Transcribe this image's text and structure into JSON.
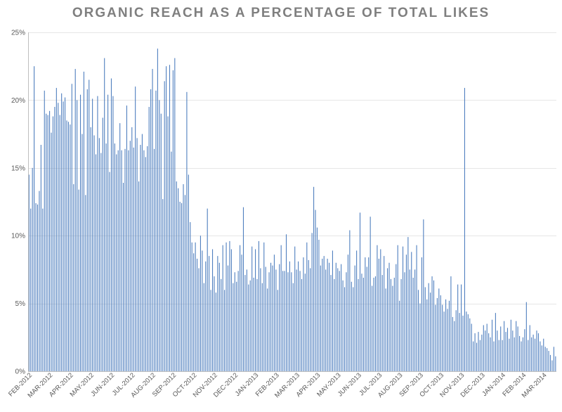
{
  "chart_data": {
    "type": "bar",
    "title": "ORGANIC REACH AS A PERCENTAGE OF TOTAL LIKES",
    "xlabel": "",
    "ylabel": "",
    "ylim": [
      0,
      25
    ],
    "y_ticks": [
      "0%",
      "5%",
      "10%",
      "15%",
      "20%",
      "25%"
    ],
    "y_tick_values": [
      0,
      5,
      10,
      15,
      20,
      25
    ],
    "grid": true,
    "legend": "none",
    "color": "#4f7fbf",
    "x_tick_labels": [
      "FEB-2012",
      "MAR-2012",
      "APR-2012",
      "MAY-2012",
      "JUN-2012",
      "JUL-2012",
      "AUG-2012",
      "SEP-2012",
      "OCT-2012",
      "NOV-2012",
      "DEC-2012",
      "JAN-2013",
      "FEB-2013",
      "MAR-2013",
      "APR-2013",
      "MAY-2013",
      "JUN-2013",
      "JUL-2013",
      "AUG-2013",
      "SEP-2013",
      "OCT-2013",
      "NOV-2013",
      "DEC-2013",
      "JAN-2014",
      "FEB-2014",
      "MAR-2014"
    ],
    "series": [
      {
        "name": "Organic reach %",
        "monthly_values": [
          [
            14.5,
            12.0,
            15.0,
            22.5,
            12.4,
            12.3,
            13.3,
            16.7,
            12.0,
            20.7,
            19.0,
            18.9
          ],
          [
            19.2,
            17.6,
            18.8,
            19.5,
            20.9,
            19.8,
            18.9,
            20.5,
            19.9,
            20.2,
            18.5,
            18.4
          ],
          [
            18.2,
            21.2,
            13.8,
            22.3,
            20.0,
            13.4,
            20.4,
            17.5,
            22.1,
            13.0,
            20.8,
            21.5
          ],
          [
            18.0,
            20.1,
            17.4,
            16.0,
            20.3,
            17.2,
            16.1,
            18.7,
            23.1,
            16.8,
            20.4,
            14.7
          ],
          [
            21.6,
            20.3,
            16.8,
            16.0,
            16.3,
            18.3,
            16.3,
            13.9,
            16.4,
            19.6,
            16.3,
            17.0
          ],
          [
            18.0,
            16.5,
            21.0,
            17.2,
            14.0,
            16.7,
            17.5,
            16.3,
            15.8,
            16.6,
            19.5,
            20.8
          ],
          [
            22.3,
            16.4,
            20.7,
            23.8,
            20.0,
            19.0,
            12.7,
            21.4,
            22.5,
            18.8,
            22.6,
            16.2
          ],
          [
            22.2,
            23.1,
            14.0,
            13.5,
            12.5,
            12.4,
            13.8,
            13.0,
            20.6,
            14.5,
            11.0,
            9.5
          ],
          [
            8.7,
            9.5,
            8.3,
            7.6,
            10.0,
            8.9,
            6.5,
            8.1,
            12.0,
            8.5,
            6.0,
            9.0
          ],
          [
            7.0,
            5.8,
            8.5,
            8.0,
            6.8,
            9.3,
            6.0,
            9.5,
            7.8,
            9.6,
            9.0,
            6.5
          ],
          [
            7.3,
            6.6,
            7.4,
            9.3,
            8.6,
            12.1,
            7.1,
            7.5,
            6.4,
            6.7,
            9.2,
            6.9
          ],
          [
            9.0,
            6.8,
            9.6,
            7.6,
            6.5,
            9.5,
            7.7,
            6.1,
            7.3,
            8.0,
            7.8,
            8.6
          ],
          [
            7.5,
            6.0,
            7.9,
            9.3,
            7.4,
            7.4,
            10.1,
            7.3,
            8.1,
            7.3,
            6.5,
            9.2
          ],
          [
            7.5,
            8.1,
            7.4,
            6.8,
            8.4,
            7.2,
            9.5,
            8.2,
            7.6,
            10.2,
            13.6,
            11.9
          ],
          [
            10.6,
            9.7,
            7.8,
            8.3,
            8.5,
            7.5,
            8.3,
            8.0,
            7.1,
            8.9,
            6.8,
            8.0
          ],
          [
            7.6,
            7.4,
            7.9,
            6.7,
            6.2,
            7.3,
            8.6,
            10.4,
            6.6,
            6.2,
            7.8,
            8.9
          ],
          [
            6.8,
            11.7,
            7.2,
            6.9,
            8.4,
            7.7,
            8.4,
            11.4,
            6.3,
            6.9,
            7.0,
            9.3
          ],
          [
            8.3,
            9.0,
            7.1,
            8.5,
            6.1,
            7.6,
            8.0,
            6.8,
            6.3,
            6.9,
            7.9,
            9.3
          ],
          [
            5.2,
            6.8,
            9.2,
            7.3,
            8.6,
            9.9,
            7.5,
            8.8,
            6.9,
            7.5,
            9.3,
            6.0
          ],
          [
            5.0,
            8.4,
            11.2,
            6.2,
            5.3,
            6.5,
            5.8,
            7.0,
            6.7,
            4.9,
            5.4,
            6.1
          ],
          [
            5.6,
            4.9,
            4.4,
            5.3,
            4.6,
            5.2,
            7.0,
            4.0,
            3.7,
            4.5,
            6.4,
            4.3
          ],
          [
            6.4,
            4.1,
            20.9,
            4.4,
            4.2,
            3.9,
            3.5,
            2.2,
            2.8,
            2.1,
            2.9,
            2.3
          ],
          [
            2.7,
            3.4,
            3.0,
            3.5,
            2.8,
            2.5,
            3.8,
            2.2,
            4.3,
            3.0,
            2.3,
            3.3
          ],
          [
            2.3,
            3.7,
            2.9,
            3.2,
            2.4,
            3.8,
            3.0,
            2.5,
            3.7,
            3.3,
            2.6,
            2.2
          ],
          [
            2.5,
            3.1,
            5.1,
            2.3,
            3.4,
            2.5,
            2.7,
            2.4,
            3.0,
            2.8,
            2.2,
            1.9
          ],
          [
            2.4,
            1.8,
            1.7,
            1.5,
            1.2,
            0.8,
            1.8,
            1.1
          ]
        ]
      }
    ]
  }
}
